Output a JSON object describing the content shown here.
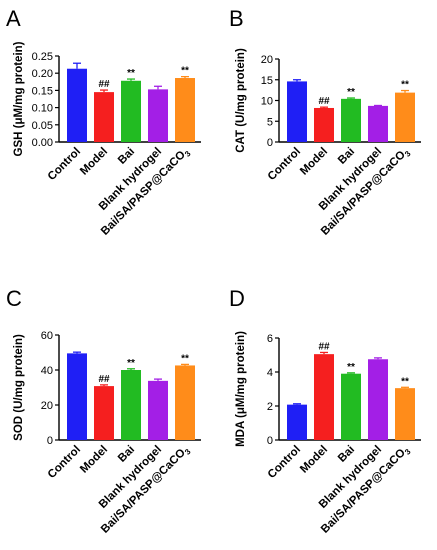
{
  "chart_data": [
    {
      "panel": "A",
      "type": "bar",
      "ylabel": "GSH (μM/mg protein)",
      "categories": [
        "Control",
        "Model",
        "Bai",
        "Blank hydrogel",
        "Bai/SA/PASP@CaCO3"
      ],
      "values": [
        0.213,
        0.145,
        0.178,
        0.153,
        0.186
      ],
      "errors": [
        0.016,
        0.006,
        0.005,
        0.009,
        0.004
      ],
      "annotations": [
        "",
        "##",
        "**",
        "",
        "**"
      ],
      "ylim": [
        0,
        0.25
      ],
      "yticks": [
        0.0,
        0.05,
        0.1,
        0.15,
        0.2,
        0.25
      ],
      "ytick_labels": [
        "0.00",
        "0.05",
        "0.10",
        "0.15",
        "0.20",
        "0.25"
      ]
    },
    {
      "panel": "B",
      "type": "bar",
      "ylabel": "CAT (U/mg protein)",
      "categories": [
        "Control",
        "Model",
        "Bai",
        "Blank hydrogel",
        "Bai/SA/PASP@CaCO3"
      ],
      "values": [
        14.6,
        8.2,
        10.4,
        8.7,
        11.9
      ],
      "errors": [
        0.4,
        0.2,
        0.2,
        0.1,
        0.5
      ],
      "annotations": [
        "",
        "##",
        "**",
        "",
        "**"
      ],
      "ylim": [
        0,
        20
      ],
      "yticks": [
        0,
        5,
        10,
        15,
        20
      ],
      "ytick_labels": [
        "0",
        "5",
        "10",
        "15",
        "20"
      ]
    },
    {
      "panel": "C",
      "type": "bar",
      "ylabel": "SOD (U/mg protein)",
      "categories": [
        "Control",
        "Model",
        "Bai",
        "Blank hydrogel",
        "Bai/SA/PASP@CaCO3"
      ],
      "values": [
        49.5,
        30.8,
        40.0,
        33.8,
        42.6
      ],
      "errors": [
        0.7,
        0.7,
        0.7,
        1.0,
        0.6
      ],
      "annotations": [
        "",
        "##",
        "**",
        "",
        "**"
      ],
      "ylim": [
        0,
        60
      ],
      "yticks": [
        0,
        20,
        40,
        60
      ],
      "ytick_labels": [
        "0",
        "20",
        "40",
        "60"
      ]
    },
    {
      "panel": "D",
      "type": "bar",
      "ylabel": "MDA (μM/mg protein)",
      "categories": [
        "Control",
        "Model",
        "Bai",
        "Blank hydrogel",
        "Bai/SA/PASP@CaCO3"
      ],
      "values": [
        2.08,
        5.05,
        3.9,
        4.75,
        3.05
      ],
      "errors": [
        0.05,
        0.1,
        0.05,
        0.08,
        0.05
      ],
      "annotations": [
        "",
        "##",
        "**",
        "",
        "**"
      ],
      "ylim": [
        0,
        6
      ],
      "yticks": [
        0,
        2,
        4,
        6
      ],
      "ytick_labels": [
        "0",
        "2",
        "4",
        "6"
      ]
    }
  ],
  "colors": [
    "#1f1ff5",
    "#f51f1f",
    "#22bb22",
    "#a31fe6",
    "#ff8c1a"
  ]
}
